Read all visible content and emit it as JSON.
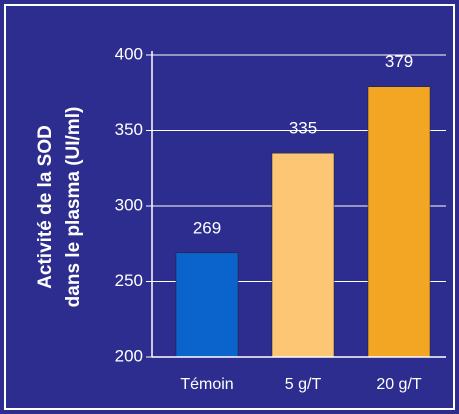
{
  "chart_data": {
    "type": "bar",
    "ylabel": [
      "Activité de la SOD",
      "dans le plasma (UI/ml)"
    ],
    "categories": [
      "Témoin",
      "5 g/T",
      "20 g/T"
    ],
    "values": [
      269,
      335,
      379
    ],
    "colors": [
      "#0a64cc",
      "#fdc674",
      "#f3a623"
    ],
    "ylim": [
      200,
      400
    ],
    "yticks": [
      200,
      250,
      300,
      350,
      400
    ],
    "grid": true
  }
}
